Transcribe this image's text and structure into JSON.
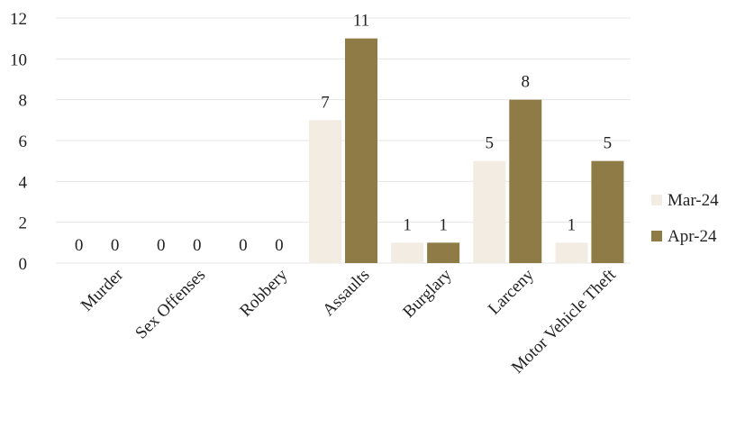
{
  "chart_data": {
    "type": "bar",
    "categories": [
      "Murder",
      "Sex Offenses",
      "Robbery",
      "Assaults",
      "Burglary",
      "Larceny",
      "Motor Vehicle Theft"
    ],
    "series": [
      {
        "name": "Mar-24",
        "values": [
          0,
          0,
          0,
          7,
          1,
          5,
          1
        ],
        "color": "#f2ece2"
      },
      {
        "name": "Apr-24",
        "values": [
          0,
          0,
          0,
          11,
          1,
          8,
          5
        ],
        "color": "#8f7b45"
      }
    ],
    "yticks": [
      "0",
      "2",
      "4",
      "6",
      "8",
      "10",
      "12"
    ],
    "ylim": [
      0,
      12
    ],
    "grid": true,
    "legend_position": "right",
    "data_labels": true
  }
}
